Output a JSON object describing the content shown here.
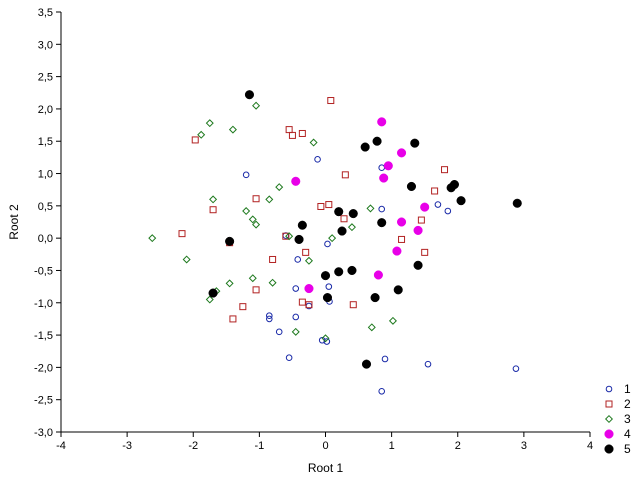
{
  "chart_data": {
    "type": "scatter",
    "title": "",
    "xlabel": "Root 1",
    "ylabel": "Root 2",
    "xlim": [
      -4,
      4
    ],
    "ylim": [
      -3,
      3.5
    ],
    "x_ticks": [
      "-4",
      "-3",
      "-2",
      "-1",
      "0",
      "1",
      "2",
      "3",
      "4"
    ],
    "y_ticks": [
      "3,5",
      "3,0",
      "2,5",
      "2,0",
      "1,5",
      "1,0",
      "0,5",
      "0,0",
      "-0,5",
      "-1,0",
      "-1,5",
      "-2,0",
      "-2,5",
      "-3,0"
    ],
    "grid": false,
    "legend_position": "bottom-right",
    "series": [
      {
        "name": "1",
        "marker": "open-circle",
        "color": "#1a2aa8",
        "points": [
          [
            -1.2,
            0.98
          ],
          [
            -0.12,
            1.22
          ],
          [
            0.85,
            1.09
          ],
          [
            0.85,
            0.45
          ],
          [
            1.7,
            0.52
          ],
          [
            1.85,
            0.42
          ],
          [
            -0.6,
            0.04
          ],
          [
            -0.42,
            -0.33
          ],
          [
            0.03,
            -0.09
          ],
          [
            -0.45,
            -0.78
          ],
          [
            0.05,
            -0.75
          ],
          [
            0.06,
            -0.98
          ],
          [
            -0.85,
            -1.2
          ],
          [
            -0.85,
            -1.25
          ],
          [
            -0.25,
            -1.05
          ],
          [
            -0.45,
            -1.22
          ],
          [
            -0.7,
            -1.45
          ],
          [
            -0.55,
            -1.85
          ],
          [
            -0.05,
            -1.58
          ],
          [
            0.02,
            -1.6
          ],
          [
            0.9,
            -1.87
          ],
          [
            1.55,
            -1.95
          ],
          [
            0.85,
            -2.37
          ],
          [
            2.88,
            -2.02
          ]
        ]
      },
      {
        "name": "2",
        "marker": "open-square",
        "color": "#b22222",
        "points": [
          [
            0.08,
            2.13
          ],
          [
            -1.97,
            1.52
          ],
          [
            -0.55,
            1.68
          ],
          [
            -0.5,
            1.59
          ],
          [
            -0.35,
            1.62
          ],
          [
            0.3,
            0.98
          ],
          [
            1.8,
            1.06
          ],
          [
            1.65,
            0.73
          ],
          [
            -1.7,
            0.44
          ],
          [
            -1.05,
            0.61
          ],
          [
            -0.07,
            0.49
          ],
          [
            0.05,
            0.52
          ],
          [
            0.28,
            0.3
          ],
          [
            1.45,
            0.28
          ],
          [
            1.15,
            -0.02
          ],
          [
            -2.17,
            0.07
          ],
          [
            -1.45,
            -0.07
          ],
          [
            -0.6,
            0.03
          ],
          [
            -0.8,
            -0.33
          ],
          [
            -0.3,
            -0.22
          ],
          [
            1.5,
            -0.22
          ],
          [
            -1.05,
            -0.8
          ],
          [
            -0.35,
            -0.99
          ],
          [
            -0.25,
            -1.03
          ],
          [
            0.42,
            -1.03
          ],
          [
            -1.25,
            -1.06
          ],
          [
            -1.4,
            -1.25
          ]
        ]
      },
      {
        "name": "3",
        "marker": "open-diamond",
        "color": "#1f7a1f",
        "points": [
          [
            -1.05,
            2.05
          ],
          [
            -1.75,
            1.78
          ],
          [
            -1.88,
            1.6
          ],
          [
            -1.4,
            1.68
          ],
          [
            -0.18,
            1.48
          ],
          [
            -0.7,
            0.79
          ],
          [
            -1.7,
            0.6
          ],
          [
            -0.85,
            0.6
          ],
          [
            -1.2,
            0.42
          ],
          [
            -1.1,
            0.29
          ],
          [
            -1.05,
            0.21
          ],
          [
            0.68,
            0.46
          ],
          [
            0.4,
            0.17
          ],
          [
            0.1,
            0.0
          ],
          [
            -0.55,
            0.03
          ],
          [
            -2.62,
            0.0
          ],
          [
            -2.1,
            -0.33
          ],
          [
            -0.25,
            -0.35
          ],
          [
            -1.45,
            -0.7
          ],
          [
            -1.1,
            -0.62
          ],
          [
            -0.8,
            -0.69
          ],
          [
            -1.75,
            -0.95
          ],
          [
            -1.65,
            -0.82
          ],
          [
            -0.45,
            -1.45
          ],
          [
            0.0,
            -1.55
          ],
          [
            0.7,
            -1.38
          ],
          [
            1.02,
            -1.28
          ]
        ]
      },
      {
        "name": "4",
        "marker": "filled-circle",
        "color": "#e800e8",
        "points": [
          [
            0.85,
            1.8
          ],
          [
            1.15,
            1.32
          ],
          [
            0.95,
            1.12
          ],
          [
            0.88,
            0.93
          ],
          [
            1.5,
            0.48
          ],
          [
            -0.45,
            0.88
          ],
          [
            1.15,
            0.25
          ],
          [
            1.4,
            0.12
          ],
          [
            1.08,
            -0.2
          ],
          [
            0.8,
            -0.57
          ],
          [
            -0.25,
            -0.78
          ]
        ]
      },
      {
        "name": "5",
        "marker": "filled-circle",
        "color": "#000000",
        "points": [
          [
            -1.15,
            2.22
          ],
          [
            0.78,
            1.5
          ],
          [
            0.6,
            1.41
          ],
          [
            1.35,
            1.47
          ],
          [
            1.3,
            0.8
          ],
          [
            1.95,
            0.83
          ],
          [
            1.9,
            0.78
          ],
          [
            2.05,
            0.58
          ],
          [
            2.9,
            0.54
          ],
          [
            0.42,
            0.38
          ],
          [
            0.2,
            0.41
          ],
          [
            0.85,
            0.24
          ],
          [
            -0.35,
            0.2
          ],
          [
            0.25,
            0.11
          ],
          [
            -0.4,
            -0.02
          ],
          [
            -1.45,
            -0.05
          ],
          [
            0.2,
            -0.52
          ],
          [
            0.4,
            -0.5
          ],
          [
            0.0,
            -0.58
          ],
          [
            1.4,
            -0.42
          ],
          [
            1.1,
            -0.8
          ],
          [
            0.03,
            -0.92
          ],
          [
            0.75,
            -0.92
          ],
          [
            -1.7,
            -0.85
          ],
          [
            0.62,
            -1.95
          ]
        ]
      }
    ]
  }
}
